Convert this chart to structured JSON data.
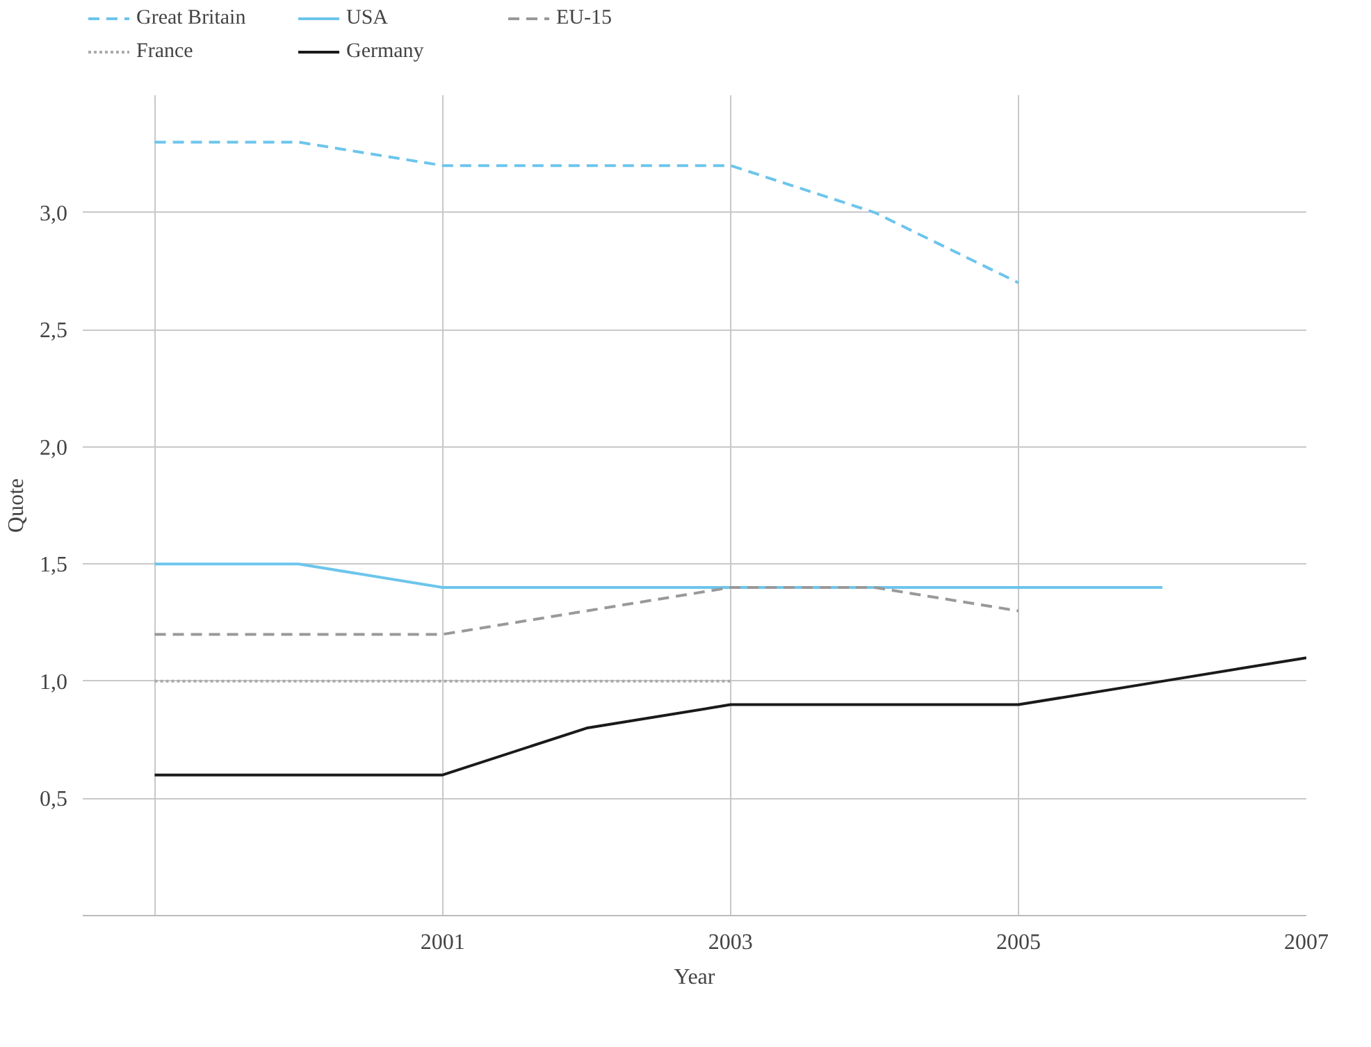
{
  "chart_data": {
    "type": "line",
    "xlabel": "Year",
    "ylabel": "Quote",
    "x": [
      1999,
      2000,
      2001,
      2002,
      2003,
      2004,
      2005,
      2006,
      2007
    ],
    "series": [
      {
        "name": "Great Britain",
        "color": "#6cc5ec",
        "line_style": "dashed",
        "values": [
          3.3,
          3.3,
          3.2,
          3.2,
          3.2,
          3.0,
          2.7,
          null,
          null
        ]
      },
      {
        "name": "USA",
        "color": "#6cc5ec",
        "line_style": "solid",
        "values": [
          1.5,
          1.5,
          1.4,
          1.4,
          1.4,
          1.4,
          1.4,
          1.4,
          null
        ]
      },
      {
        "name": "EU-15",
        "color": "#999999",
        "line_style": "dashed",
        "values": [
          1.2,
          1.2,
          1.2,
          1.3,
          1.4,
          1.4,
          1.3,
          null,
          null
        ]
      },
      {
        "name": "France",
        "color": "#aaaaaa",
        "line_style": "dotted",
        "values": [
          1.0,
          1.0,
          1.0,
          1.0,
          1.0,
          null,
          null,
          null,
          null
        ]
      },
      {
        "name": "Germany",
        "color": "#1a1a1a",
        "line_style": "solid",
        "values": [
          0.6,
          0.6,
          0.6,
          0.8,
          0.9,
          0.9,
          0.9,
          1.0,
          1.1
        ]
      }
    ],
    "xlim": [
      1998.5,
      2007
    ],
    "ylim": [
      0,
      3.5
    ],
    "xticks": [
      {
        "value": 1999,
        "label": null
      },
      2001,
      2003,
      2005,
      2007
    ],
    "yticks": [
      {
        "value": 0.5,
        "label": "0,5"
      },
      {
        "value": 1.0,
        "label": "1,0"
      },
      {
        "value": 1.5,
        "label": "1,5"
      },
      {
        "value": 2.0,
        "label": "2,0"
      },
      {
        "value": 2.5,
        "label": "2,5"
      },
      {
        "value": 3.0,
        "label": "3,0"
      }
    ],
    "grid": true,
    "legend": "top",
    "marker": "none"
  }
}
